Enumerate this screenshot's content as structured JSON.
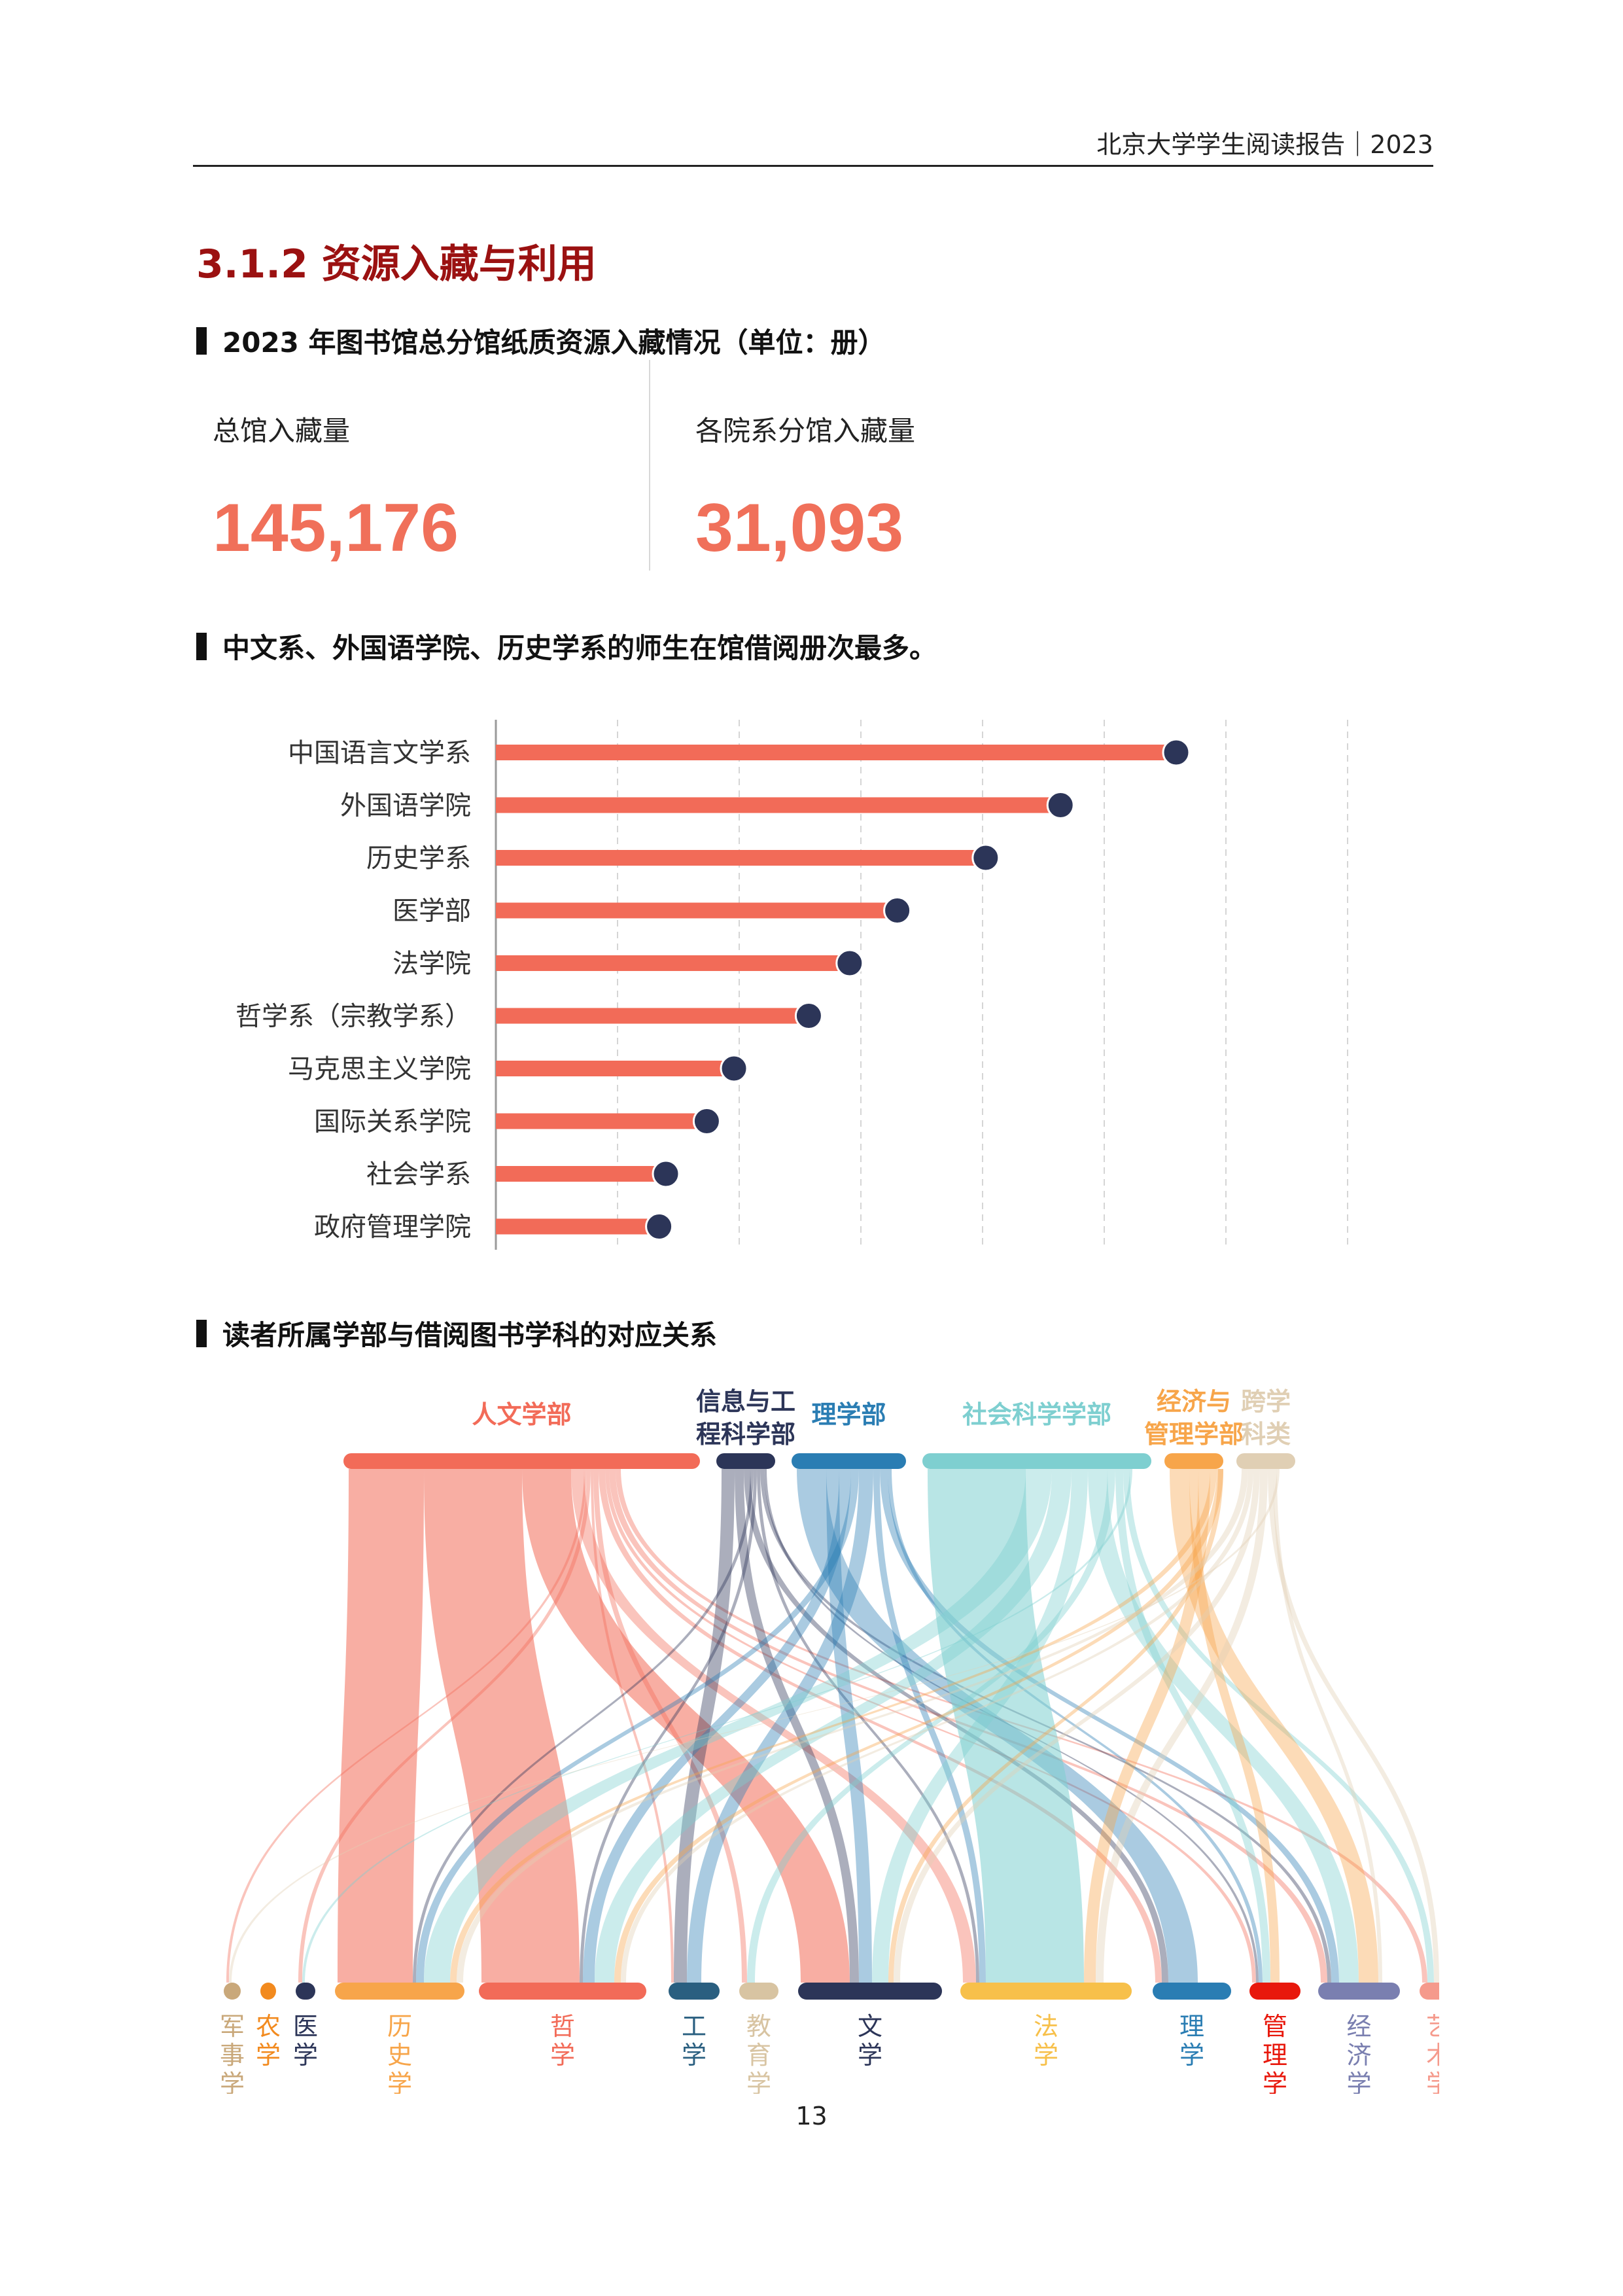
{
  "header": {
    "title": "北京大学学生阅读报告",
    "year": "｜2023"
  },
  "section": {
    "title": "3.1.2  资源入藏与利用"
  },
  "holdings": {
    "heading": "2023 年图书馆总分馆纸质资源入藏情况（单位：册）",
    "main_label": "总馆入藏量",
    "main_value": "145,176",
    "branch_label": "各院系分馆入藏量",
    "branch_value": "31,093"
  },
  "borrowing": {
    "heading": "中文系、外国语学院、历史学系的师生在馆借阅册次最多。"
  },
  "chart_data": [
    {
      "type": "bar",
      "orientation": "horizontal",
      "categories": [
        "中国语言文学系",
        "外国语学院",
        "历史学系",
        "医学部",
        "法学院",
        "哲学系（宗教学系）",
        "马克思主义学院",
        "国际关系学院",
        "社会学系",
        "政府管理学院"
      ],
      "values": [
        100,
        83,
        72,
        59,
        52,
        46,
        35,
        31,
        25,
        24
      ],
      "xlim": [
        0,
        125
      ],
      "grid": true,
      "colors": {
        "bar": "#f26b58",
        "dot": "#2c3558"
      }
    },
    {
      "type": "sankey",
      "title": "读者所属学部与借阅图书学科的对应关系",
      "sources": [
        {
          "name": "人文学部",
          "lines": [
            "人文学部"
          ],
          "color": "#f26b58",
          "weight": 44
        },
        {
          "name": "信息与工程科学部",
          "lines": [
            "信息与工",
            "程科学部"
          ],
          "color": "#2c3558",
          "weight": 7
        },
        {
          "name": "理学部",
          "lines": [
            "理学部"
          ],
          "color": "#2a7db3",
          "weight": 14
        },
        {
          "name": "社会科学学部",
          "lines": [
            "社会科学学部"
          ],
          "color": "#7ecfd0",
          "weight": 24
        },
        {
          "name": "经济与管理学部",
          "lines": [
            "经济与",
            "管理学部"
          ],
          "color": "#f7a54a",
          "weight": 7
        },
        {
          "name": "跨学科类",
          "lines": [
            "跨学",
            "科类"
          ],
          "color": "#e0cfb4",
          "weight": 7
        }
      ],
      "targets": [
        {
          "name": "军事学",
          "lines": [
            "军",
            "事",
            "学"
          ],
          "color": "#c9a87a",
          "weight": 2
        },
        {
          "name": "农学",
          "lines": [
            "农",
            "学"
          ],
          "color": "#f28a1e",
          "weight": 2
        },
        {
          "name": "医学",
          "lines": [
            "医",
            "学"
          ],
          "color": "#2c3558",
          "weight": 2
        },
        {
          "name": "历史学",
          "lines": [
            "历",
            "史",
            "学"
          ],
          "color": "#f7a54a",
          "weight": 16
        },
        {
          "name": "哲学",
          "lines": [
            "哲",
            "学"
          ],
          "color": "#f26b58",
          "weight": 21
        },
        {
          "name": "工学",
          "lines": [
            "工",
            "学"
          ],
          "color": "#2a5f80",
          "weight": 5
        },
        {
          "name": "教育学",
          "lines": [
            "教",
            "育",
            "学"
          ],
          "color": "#d8c4a2",
          "weight": 4
        },
        {
          "name": "文学",
          "lines": [
            "文",
            "学"
          ],
          "color": "#2c3558",
          "weight": 18
        },
        {
          "name": "法学",
          "lines": [
            "法",
            "学"
          ],
          "color": "#f7c04a",
          "weight": 22
        },
        {
          "name": "理学",
          "lines": [
            "理",
            "学"
          ],
          "color": "#2a7db3",
          "weight": 9
        },
        {
          "name": "管理学",
          "lines": [
            "管",
            "理",
            "学"
          ],
          "color": "#e8180c",
          "weight": 4
        },
        {
          "name": "经济学",
          "lines": [
            "经",
            "济",
            "学"
          ],
          "color": "#7a7fb0",
          "weight": 9
        },
        {
          "name": "艺术学",
          "lines": [
            "艺",
            "术",
            "学"
          ],
          "color": "#f59a8c",
          "weight": 3
        }
      ]
    }
  ],
  "page_number": "13"
}
